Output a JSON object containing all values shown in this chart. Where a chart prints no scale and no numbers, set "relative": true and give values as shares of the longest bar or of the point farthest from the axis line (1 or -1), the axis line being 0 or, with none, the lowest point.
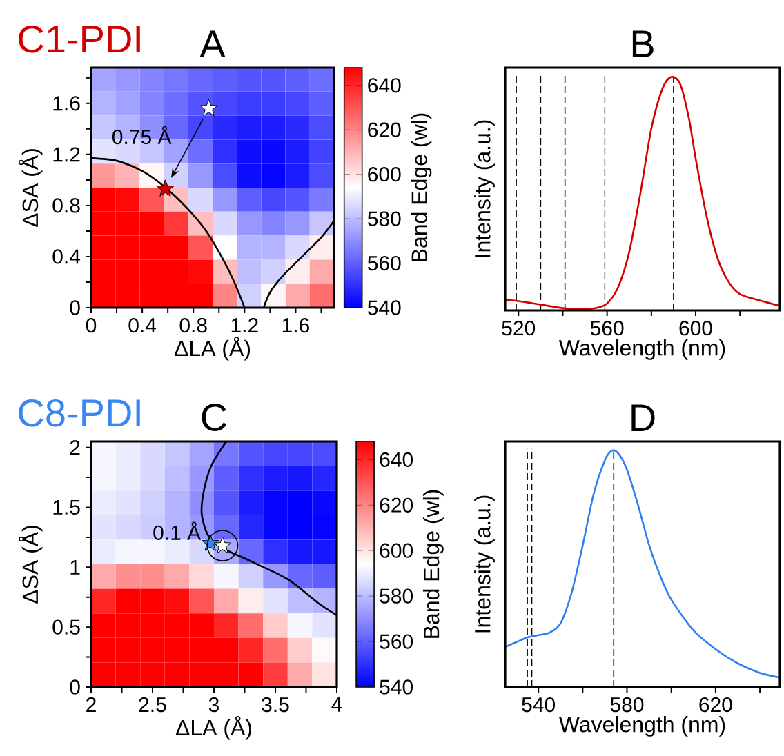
{
  "chart_data": [
    {
      "type": "heatmap",
      "title": "A",
      "subtitle": "C1-PDI",
      "xlabel": "ΔLA (Å)",
      "ylabel": "ΔSA (Å)",
      "clabel": "Band Edge (wl)",
      "annotations": [
        "0.75 Å"
      ],
      "x": [
        0.095,
        0.285,
        0.475,
        0.665,
        0.855,
        1.045,
        1.235,
        1.425,
        1.615,
        1.805
      ],
      "y": [
        1.786,
        1.598,
        1.41,
        1.222,
        1.034,
        0.846,
        0.658,
        0.47,
        0.282,
        0.094
      ],
      "xlim": [
        0,
        1.9
      ],
      "ylim": [
        0,
        1.88
      ],
      "xticks": [
        0,
        {
          "value": 0.2,
          "label": null
        },
        0.4,
        {
          "value": 0.6,
          "label": null
        },
        0.8,
        {
          "value": 1.0,
          "label": null
        },
        1.2,
        {
          "value": 1.4,
          "label": null
        },
        1.6,
        {
          "value": 1.8,
          "label": null
        }
      ],
      "yticks": [
        0,
        {
          "value": 0.2,
          "label": null
        },
        0.4,
        {
          "value": 0.6,
          "label": null
        },
        0.8,
        {
          "value": 1.0,
          "label": null
        },
        1.2,
        {
          "value": 1.4,
          "label": null
        },
        1.6,
        {
          "value": 1.8,
          "label": null
        }
      ],
      "clim": [
        540,
        648
      ],
      "cticks": [
        540,
        560,
        580,
        600,
        620,
        640
      ],
      "cells": [
        [
          575,
          572,
          568,
          565,
          562,
          560,
          558,
          558,
          560,
          563
        ],
        [
          578,
          574,
          568,
          563,
          558,
          555,
          553,
          553,
          555,
          560
        ],
        [
          582,
          578,
          570,
          562,
          555,
          549,
          546,
          546,
          549,
          556
        ],
        [
          588,
          586,
          582,
          574,
          563,
          550,
          543,
          542,
          546,
          554
        ],
        [
          616,
          610,
          596,
          584,
          572,
          556,
          543,
          541,
          546,
          556
        ],
        [
          648,
          646,
          630,
          608,
          586,
          572,
          560,
          555,
          558,
          566
        ],
        [
          648,
          648,
          648,
          636,
          608,
          586,
          572,
          568,
          572,
          582
        ],
        [
          648,
          648,
          648,
          648,
          630,
          594,
          578,
          578,
          586,
          598
        ],
        [
          648,
          648,
          648,
          648,
          646,
          608,
          580,
          584,
          598,
          612
        ],
        [
          648,
          648,
          648,
          648,
          648,
          620,
          584,
          596,
          612,
          625
        ]
      ],
      "series": [
        {
          "type": "line",
          "color": "#000000",
          "x": [
            0,
            0.2,
            0.4,
            0.57,
            0.75,
            0.9,
            1.02,
            1.12,
            1.2
          ],
          "values": [
            1.17,
            1.15,
            1.07,
            0.95,
            0.78,
            0.6,
            0.4,
            0.2,
            0
          ]
        },
        {
          "type": "line",
          "color": "#000000",
          "x": [
            1.35,
            1.4,
            1.5,
            1.65,
            1.8,
            1.9
          ],
          "values": [
            0,
            0.12,
            0.25,
            0.4,
            0.55,
            0.68
          ]
        },
        {
          "type": "scatter",
          "marker": "star",
          "x": [
            0.58,
            0.92
          ],
          "values": [
            0.93,
            1.56
          ],
          "colors": [
            "#d00000",
            "#ffffff"
          ]
        }
      ]
    },
    {
      "type": "line",
      "title": "B",
      "xlabel": "Wavelength (nm)",
      "ylabel": "Intensity (a.u.)",
      "relative": true,
      "tick_labels": "x",
      "xlim": [
        514,
        638
      ],
      "xticks": [
        520,
        {
          "value": 540,
          "label": null
        },
        560,
        {
          "value": 580,
          "label": null
        },
        600,
        {
          "value": 620,
          "label": null
        }
      ],
      "series": [
        {
          "color": "#d40000",
          "x": [
            514,
            520,
            530,
            540,
            548,
            555,
            560,
            565,
            570,
            575,
            580,
            585,
            589,
            593,
            597,
            600,
            605,
            610,
            615,
            620,
            630,
            638
          ],
          "values": [
            0.045,
            0.04,
            0.025,
            0.01,
            0.005,
            0.01,
            0.03,
            0.1,
            0.25,
            0.5,
            0.78,
            0.95,
            1.0,
            0.97,
            0.82,
            0.65,
            0.4,
            0.22,
            0.12,
            0.07,
            0.04,
            0.02
          ]
        }
      ],
      "ref_lines": [
        {
          "axis": "x",
          "value": 519,
          "line_style": "dashed"
        },
        {
          "axis": "x",
          "value": 530,
          "line_style": "dashed"
        },
        {
          "axis": "x",
          "value": 541,
          "line_style": "dashed"
        },
        {
          "axis": "x",
          "value": 559,
          "line_style": "dashed"
        },
        {
          "axis": "x",
          "value": 590,
          "line_style": "dashed"
        }
      ]
    },
    {
      "type": "heatmap",
      "title": "C",
      "subtitle": "C8-PDI",
      "xlabel": "ΔLA (Å)",
      "ylabel": "ΔSA (Å)",
      "clabel": "Band Edge (wl)",
      "annotations": [
        "0.1 Å"
      ],
      "x": [
        2.1,
        2.3,
        2.5,
        2.7,
        2.9,
        3.1,
        3.3,
        3.5,
        3.7,
        3.9
      ],
      "y": [
        1.9475,
        1.7425,
        1.5375,
        1.3325,
        1.1275,
        0.9225,
        0.7175,
        0.5125,
        0.3075,
        0.1025
      ],
      "xlim": [
        2,
        4
      ],
      "ylim": [
        0,
        2.05
      ],
      "xticks": [
        2,
        {
          "value": 2.25,
          "label": null
        },
        2.5,
        {
          "value": 2.75,
          "label": null
        },
        3,
        {
          "value": 3.25,
          "label": null
        },
        3.5,
        {
          "value": 3.75,
          "label": null
        },
        4
      ],
      "yticks": [
        0,
        {
          "value": 0.25,
          "label": null
        },
        0.5,
        {
          "value": 0.75,
          "label": null
        },
        1,
        {
          "value": 1.25,
          "label": null
        },
        1.5,
        {
          "value": 1.75,
          "label": null
        },
        2
      ],
      "clim": [
        540,
        648
      ],
      "cticks": [
        540,
        560,
        580,
        600,
        620,
        640
      ],
      "cells": [
        [
          592,
          590,
          586,
          582,
          575,
          565,
          558,
          555,
          555,
          556
        ],
        [
          592,
          590,
          586,
          580,
          572,
          560,
          550,
          546,
          545,
          548
        ],
        [
          590,
          588,
          584,
          578,
          570,
          558,
          546,
          541,
          540,
          542
        ],
        [
          588,
          586,
          583,
          578,
          572,
          562,
          548,
          541,
          540,
          541
        ],
        [
          590,
          592,
          592,
          590,
          586,
          576,
          562,
          550,
          545,
          545
        ],
        [
          612,
          618,
          618,
          612,
          602,
          592,
          584,
          572,
          562,
          560
        ],
        [
          640,
          648,
          648,
          645,
          630,
          612,
          598,
          588,
          580,
          578
        ],
        [
          648,
          648,
          648,
          648,
          648,
          640,
          625,
          605,
          592,
          588
        ],
        [
          648,
          648,
          648,
          648,
          648,
          648,
          640,
          625,
          605,
          595
        ],
        [
          648,
          648,
          648,
          648,
          648,
          648,
          648,
          635,
          612,
          600
        ]
      ],
      "series": [
        {
          "type": "line",
          "color": "#000000",
          "x": [
            3.1,
            2.98,
            2.92,
            2.9,
            2.95,
            3.05,
            3.3,
            3.6,
            3.85,
            4
          ],
          "values": [
            2.05,
            1.85,
            1.65,
            1.45,
            1.27,
            1.17,
            1.05,
            0.9,
            0.7,
            0.6
          ]
        },
        {
          "type": "scatter",
          "marker": "star",
          "x": [
            2.97,
            3.07
          ],
          "values": [
            1.2,
            1.18
          ],
          "colors": [
            "#3a86f0",
            "#ffffff"
          ]
        }
      ]
    },
    {
      "type": "line",
      "title": "D",
      "xlabel": "Wavelength (nm)",
      "ylabel": "Intensity (a.u.)",
      "relative": true,
      "tick_labels": "x",
      "xlim": [
        525,
        649
      ],
      "xticks": [
        540,
        {
          "value": 560,
          "label": null
        },
        580,
        {
          "value": 600,
          "label": null
        },
        620,
        {
          "value": 640,
          "label": null
        }
      ],
      "series": [
        {
          "color": "#2f7ff0",
          "x": [
            525,
            530,
            535,
            540,
            545,
            550,
            555,
            560,
            565,
            570,
            573,
            576,
            580,
            585,
            590,
            595,
            600,
            610,
            620,
            630,
            640,
            649
          ],
          "values": [
            0.17,
            0.19,
            0.21,
            0.22,
            0.23,
            0.27,
            0.4,
            0.6,
            0.82,
            0.96,
            1.0,
            0.99,
            0.92,
            0.77,
            0.6,
            0.47,
            0.37,
            0.24,
            0.16,
            0.1,
            0.06,
            0.04
          ]
        }
      ],
      "ref_lines": [
        {
          "axis": "x",
          "value": 535,
          "line_style": "dashed"
        },
        {
          "axis": "x",
          "value": 537,
          "line_style": "dashed"
        },
        {
          "axis": "x",
          "value": 574,
          "line_style": "dashed"
        }
      ]
    }
  ]
}
